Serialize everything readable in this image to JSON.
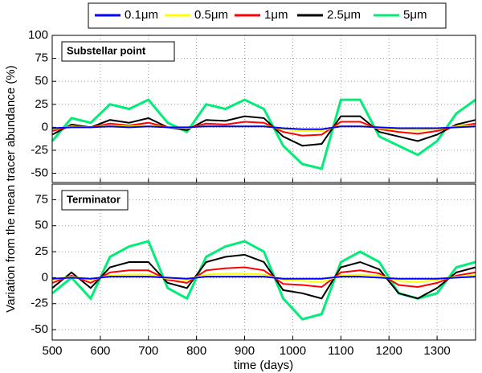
{
  "chart_data": [
    {
      "type": "line",
      "annotation": "Substellar point",
      "ylabel": "Variation from the mean tracer abundance (%)",
      "x": [
        500,
        540,
        580,
        620,
        660,
        700,
        740,
        780,
        820,
        860,
        900,
        940,
        980,
        1020,
        1060,
        1100,
        1140,
        1180,
        1220,
        1260,
        1300,
        1340,
        1380
      ],
      "xlim": [
        500,
        1380
      ],
      "xticks": [
        500,
        600,
        700,
        800,
        900,
        1000,
        1100,
        1200,
        1300
      ],
      "ylim": [
        -60,
        100
      ],
      "yticks": [
        -50,
        -25,
        0,
        25,
        50,
        75,
        100
      ],
      "grid": true,
      "series": [
        {
          "name": "0.1μm",
          "color": "#0000ff",
          "values": [
            -1,
            0,
            0,
            1,
            0,
            1,
            0,
            0,
            1,
            1,
            1,
            1,
            -1,
            -2,
            -2,
            1,
            1,
            0,
            -1,
            -1,
            -1,
            0,
            1
          ]
        },
        {
          "name": "0.5μm",
          "color": "#ffff00",
          "values": [
            -2,
            1,
            0,
            2,
            1,
            2,
            0,
            -1,
            2,
            1,
            2,
            2,
            -2,
            -4,
            -4,
            2,
            2,
            -1,
            -2,
            -3,
            -2,
            1,
            2
          ]
        },
        {
          "name": "1μm",
          "color": "#ff0000",
          "values": [
            -4,
            1,
            0,
            4,
            2,
            5,
            0,
            -1,
            4,
            3,
            6,
            5,
            -5,
            -9,
            -8,
            6,
            6,
            -2,
            -5,
            -7,
            -4,
            1,
            4
          ]
        },
        {
          "name": "2.5μm",
          "color": "#000000",
          "values": [
            -8,
            3,
            0,
            8,
            5,
            10,
            0,
            -3,
            8,
            7,
            12,
            10,
            -10,
            -20,
            -18,
            12,
            12,
            -5,
            -10,
            -15,
            -8,
            3,
            8
          ]
        },
        {
          "name": "5μm",
          "color": "#00ee77",
          "values": [
            -15,
            10,
            5,
            25,
            20,
            30,
            5,
            -5,
            25,
            20,
            30,
            20,
            -20,
            -40,
            -45,
            30,
            30,
            -10,
            -20,
            -30,
            -15,
            15,
            30
          ]
        }
      ]
    },
    {
      "type": "line",
      "annotation": "Terminator",
      "xlabel": "time (days)",
      "x": [
        500,
        540,
        580,
        620,
        660,
        700,
        740,
        780,
        820,
        860,
        900,
        940,
        980,
        1020,
        1060,
        1100,
        1140,
        1180,
        1220,
        1260,
        1300,
        1340,
        1380
      ],
      "xlim": [
        500,
        1380
      ],
      "xticks": [
        500,
        600,
        700,
        800,
        900,
        1000,
        1100,
        1200,
        1300
      ],
      "ylim": [
        -60,
        90
      ],
      "yticks": [
        -50,
        -25,
        0,
        25,
        50,
        75
      ],
      "grid": true,
      "series": [
        {
          "name": "0.1μm",
          "color": "#0000ff",
          "values": [
            -1,
            0,
            -1,
            1,
            1,
            1,
            0,
            -1,
            1,
            1,
            1,
            1,
            -1,
            -1,
            -1,
            1,
            1,
            0,
            -1,
            -1,
            -1,
            0,
            1
          ]
        },
        {
          "name": "0.5μm",
          "color": "#ffff00",
          "values": [
            -2,
            1,
            -2,
            2,
            3,
            3,
            -1,
            -2,
            3,
            4,
            4,
            3,
            -2,
            -3,
            -4,
            2,
            3,
            2,
            -3,
            -4,
            -2,
            1,
            2
          ]
        },
        {
          "name": "1μm",
          "color": "#ff0000",
          "values": [
            -5,
            2,
            -5,
            5,
            7,
            7,
            -2,
            -5,
            7,
            9,
            10,
            7,
            -6,
            -7,
            -9,
            5,
            7,
            4,
            -7,
            -9,
            -5,
            2,
            5
          ]
        },
        {
          "name": "2.5μm",
          "color": "#000000",
          "values": [
            -10,
            5,
            -10,
            10,
            15,
            15,
            -5,
            -10,
            15,
            20,
            22,
            15,
            -12,
            -15,
            -20,
            10,
            15,
            8,
            -15,
            -20,
            -10,
            5,
            10
          ]
        },
        {
          "name": "5μm",
          "color": "#00ee77",
          "values": [
            -15,
            0,
            -20,
            20,
            30,
            35,
            -10,
            -20,
            20,
            30,
            35,
            25,
            -20,
            -40,
            -35,
            15,
            25,
            15,
            -15,
            -20,
            -15,
            10,
            15
          ]
        }
      ]
    }
  ]
}
